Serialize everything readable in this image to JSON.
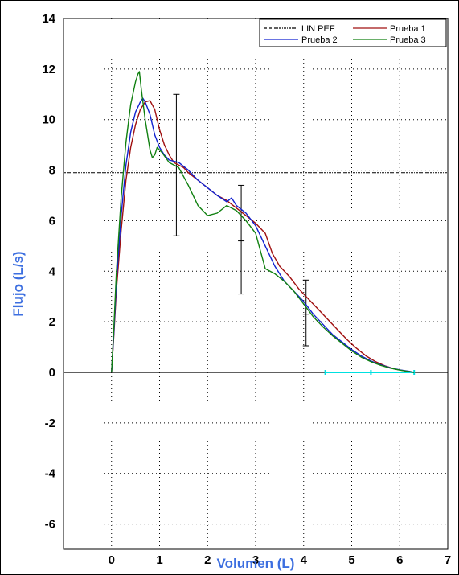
{
  "chart_data": {
    "type": "line",
    "xlabel": "Volumen (L)",
    "ylabel": "Flujo (L/s)",
    "xlim": [
      -1,
      7
    ],
    "ylim": [
      -7,
      14
    ],
    "xticks": [
      "0",
      "1",
      "2",
      "3",
      "4",
      "5",
      "6",
      "7"
    ],
    "yticks": [
      "-6",
      "-4",
      "-2",
      "0",
      "2",
      "4",
      "6",
      "8",
      "10",
      "12",
      "14"
    ],
    "grid": "dotted",
    "legend_position": "top-right",
    "colors": {
      "axis_title": "#3d6fe0",
      "lin_pef": "#000000",
      "prueba1": "#a01010",
      "prueba2": "#1020d0",
      "prueba3": "#108010",
      "baseline_marker": "#00e0e0"
    },
    "series": [
      {
        "name": "Prueba 1",
        "color": "#a01010",
        "points": [
          [
            0,
            0
          ],
          [
            0.05,
            1.5
          ],
          [
            0.1,
            3.2
          ],
          [
            0.2,
            5.6
          ],
          [
            0.3,
            7.6
          ],
          [
            0.4,
            8.9
          ],
          [
            0.5,
            9.8
          ],
          [
            0.6,
            10.4
          ],
          [
            0.7,
            10.7
          ],
          [
            0.8,
            10.75
          ],
          [
            0.9,
            10.4
          ],
          [
            1.0,
            9.6
          ],
          [
            1.1,
            9.0
          ],
          [
            1.2,
            8.6
          ],
          [
            1.3,
            8.3
          ],
          [
            1.4,
            8.2
          ],
          [
            1.5,
            8.1
          ],
          [
            1.6,
            7.9
          ],
          [
            1.8,
            7.6
          ],
          [
            2.0,
            7.3
          ],
          [
            2.2,
            7.0
          ],
          [
            2.4,
            6.8
          ],
          [
            2.6,
            6.5
          ],
          [
            2.8,
            6.2
          ],
          [
            3.0,
            5.9
          ],
          [
            3.2,
            5.5
          ],
          [
            3.35,
            4.7
          ],
          [
            3.5,
            4.2
          ],
          [
            3.7,
            3.8
          ],
          [
            3.9,
            3.3
          ],
          [
            4.1,
            2.9
          ],
          [
            4.3,
            2.5
          ],
          [
            4.5,
            2.1
          ],
          [
            4.7,
            1.7
          ],
          [
            4.9,
            1.3
          ],
          [
            5.1,
            0.95
          ],
          [
            5.3,
            0.65
          ],
          [
            5.5,
            0.42
          ],
          [
            5.7,
            0.25
          ],
          [
            5.9,
            0.13
          ],
          [
            6.1,
            0.06
          ],
          [
            6.3,
            0.0
          ]
        ]
      },
      {
        "name": "Prueba 2",
        "color": "#1020d0",
        "points": [
          [
            0,
            0
          ],
          [
            0.05,
            1.6
          ],
          [
            0.1,
            3.5
          ],
          [
            0.2,
            6.2
          ],
          [
            0.3,
            8.2
          ],
          [
            0.4,
            9.5
          ],
          [
            0.5,
            10.3
          ],
          [
            0.6,
            10.7
          ],
          [
            0.65,
            10.85
          ],
          [
            0.7,
            10.7
          ],
          [
            0.8,
            10.2
          ],
          [
            0.9,
            9.4
          ],
          [
            1.0,
            8.9
          ],
          [
            1.1,
            8.6
          ],
          [
            1.2,
            8.4
          ],
          [
            1.4,
            8.3
          ],
          [
            1.6,
            8.0
          ],
          [
            1.8,
            7.6
          ],
          [
            2.0,
            7.3
          ],
          [
            2.2,
            7.0
          ],
          [
            2.4,
            6.75
          ],
          [
            2.5,
            6.9
          ],
          [
            2.6,
            6.6
          ],
          [
            2.8,
            6.3
          ],
          [
            3.0,
            5.8
          ],
          [
            3.2,
            5.0
          ],
          [
            3.4,
            4.2
          ],
          [
            3.6,
            3.6
          ],
          [
            3.8,
            3.2
          ],
          [
            4.0,
            2.8
          ],
          [
            4.2,
            2.3
          ],
          [
            4.4,
            1.9
          ],
          [
            4.6,
            1.5
          ],
          [
            4.8,
            1.2
          ],
          [
            5.0,
            0.9
          ],
          [
            5.2,
            0.65
          ],
          [
            5.4,
            0.45
          ],
          [
            5.6,
            0.3
          ],
          [
            5.8,
            0.18
          ],
          [
            6.0,
            0.1
          ],
          [
            6.2,
            0.04
          ],
          [
            6.3,
            0.0
          ]
        ]
      },
      {
        "name": "Prueba 3",
        "color": "#108010",
        "points": [
          [
            0,
            0
          ],
          [
            0.05,
            1.8
          ],
          [
            0.1,
            3.9
          ],
          [
            0.2,
            6.9
          ],
          [
            0.3,
            9.1
          ],
          [
            0.4,
            10.6
          ],
          [
            0.5,
            11.5
          ],
          [
            0.55,
            11.8
          ],
          [
            0.58,
            11.9
          ],
          [
            0.62,
            11.2
          ],
          [
            0.7,
            10.0
          ],
          [
            0.8,
            8.8
          ],
          [
            0.85,
            8.5
          ],
          [
            0.9,
            8.6
          ],
          [
            0.95,
            8.9
          ],
          [
            1.05,
            8.7
          ],
          [
            1.2,
            8.3
          ],
          [
            1.4,
            8.1
          ],
          [
            1.6,
            7.4
          ],
          [
            1.8,
            6.6
          ],
          [
            2.0,
            6.2
          ],
          [
            2.2,
            6.3
          ],
          [
            2.4,
            6.6
          ],
          [
            2.6,
            6.4
          ],
          [
            2.8,
            6.0
          ],
          [
            3.0,
            5.5
          ],
          [
            3.2,
            4.1
          ],
          [
            3.4,
            3.9
          ],
          [
            3.6,
            3.6
          ],
          [
            3.8,
            3.2
          ],
          [
            4.0,
            2.7
          ],
          [
            4.2,
            2.2
          ],
          [
            4.4,
            1.8
          ],
          [
            4.6,
            1.45
          ],
          [
            4.8,
            1.15
          ],
          [
            5.0,
            0.85
          ],
          [
            5.2,
            0.6
          ],
          [
            5.4,
            0.42
          ],
          [
            5.6,
            0.28
          ],
          [
            5.8,
            0.17
          ],
          [
            6.0,
            0.09
          ],
          [
            6.2,
            0.03
          ],
          [
            6.3,
            0.0
          ]
        ]
      },
      {
        "name": "LIN PEF",
        "color": "#000000",
        "style": "dash-dot",
        "points": [
          [
            -1,
            7.9
          ],
          [
            7,
            7.9
          ]
        ]
      }
    ],
    "error_bars": [
      {
        "x": 1.35,
        "low": 5.4,
        "high": 11.0
      },
      {
        "x": 2.7,
        "low": 3.1,
        "high": 7.4,
        "mid": 5.2
      },
      {
        "x": 4.05,
        "low": 1.05,
        "high": 3.65,
        "mid": 2.3
      }
    ],
    "baseline_marker": {
      "x_start": 4.45,
      "x_mid": 5.4,
      "x_end": 6.3,
      "y": 0
    }
  }
}
